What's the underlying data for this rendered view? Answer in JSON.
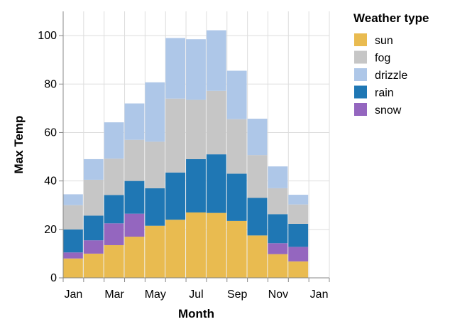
{
  "chart_data": {
    "type": "bar",
    "stacked": true,
    "xlabel": "Month",
    "ylabel": "Max Temp",
    "ylim": [
      0,
      110
    ],
    "yticks": [
      0,
      20,
      40,
      60,
      80,
      100
    ],
    "grid": true,
    "legend_title": "Weather type",
    "legend_position": "top-right",
    "categories": [
      "Jan",
      "Feb",
      "Mar",
      "Apr",
      "May",
      "Jun",
      "Jul",
      "Aug",
      "Sep",
      "Oct",
      "Nov",
      "Dec",
      "Jan"
    ],
    "x_tick_labels": [
      "Jan",
      "Mar",
      "May",
      "Jul",
      "Sep",
      "Nov",
      "Jan"
    ],
    "x_tick_categories": [
      0,
      2,
      4,
      6,
      8,
      10,
      12
    ],
    "series": [
      {
        "name": "sun",
        "color": "#e9bb50",
        "values": [
          8,
          10,
          13.5,
          17,
          21.5,
          24,
          27,
          26.8,
          23.5,
          17.5,
          9.8,
          6.8,
          0
        ]
      },
      {
        "name": "snow",
        "color": "#9466bf",
        "values": [
          2.5,
          5.5,
          9,
          9.5,
          0,
          0,
          0,
          0,
          0,
          0,
          4.5,
          6,
          0
        ]
      },
      {
        "name": "rain",
        "color": "#1f77b4",
        "values": [
          9.5,
          10.2,
          11.7,
          13.5,
          15.5,
          19.5,
          22,
          24.2,
          19.5,
          15.5,
          12,
          9.5,
          0
        ]
      },
      {
        "name": "fog",
        "color": "#c6c6c6",
        "values": [
          10,
          14.8,
          15,
          17,
          19.2,
          30.5,
          24.5,
          26.2,
          22.5,
          17.7,
          10.7,
          8,
          0
        ]
      },
      {
        "name": "drizzle",
        "color": "#aec7e8",
        "values": [
          4.5,
          8.5,
          15,
          15,
          24.5,
          25,
          25,
          25,
          20,
          15,
          9,
          4,
          0
        ]
      }
    ],
    "legend_order": [
      "sun",
      "fog",
      "drizzle",
      "rain",
      "snow"
    ]
  }
}
